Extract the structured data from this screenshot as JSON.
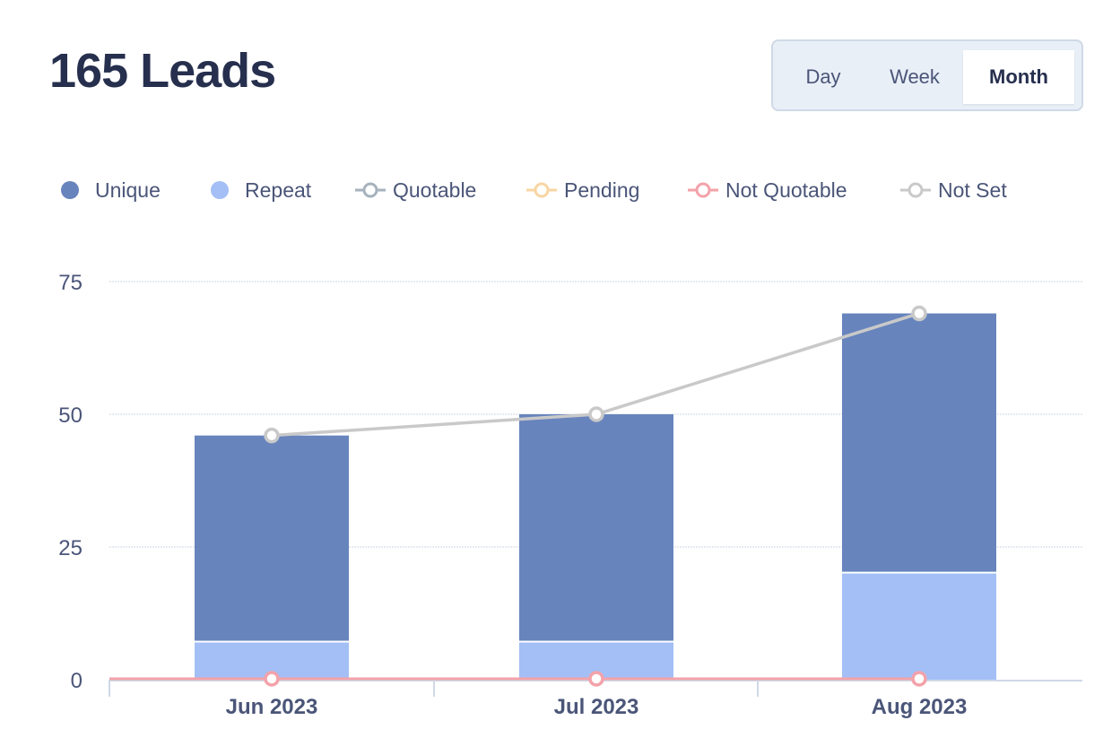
{
  "header": {
    "title": "165 Leads"
  },
  "range_toggle": {
    "options": [
      {
        "label": "Day",
        "active": false
      },
      {
        "label": "Week",
        "active": false
      },
      {
        "label": "Month",
        "active": true
      }
    ]
  },
  "legend": [
    {
      "label": "Unique",
      "type": "bar",
      "color": "#6784bd"
    },
    {
      "label": "Repeat",
      "type": "bar",
      "color": "#a3bff5"
    },
    {
      "label": "Quotable",
      "type": "line",
      "color": "#a6b2bd"
    },
    {
      "label": "Pending",
      "type": "line",
      "color": "#f8d5a3"
    },
    {
      "label": "Not Quotable",
      "type": "line",
      "color": "#f3a2aa"
    },
    {
      "label": "Not Set",
      "type": "line",
      "color": "#c9c9c9"
    }
  ],
  "axis": {
    "y_ticks": [
      "0",
      "25",
      "50",
      "75"
    ],
    "x_ticks": [
      "Jun 2023",
      "Jul 2023",
      "Aug 2023"
    ]
  },
  "chart_data": {
    "type": "bar",
    "title": "165 Leads",
    "categories": [
      "Jun 2023",
      "Jul 2023",
      "Aug 2023"
    ],
    "stacked": true,
    "series": [
      {
        "name": "Unique",
        "type": "bar",
        "color": "#6784bd",
        "values": [
          39,
          43,
          49
        ]
      },
      {
        "name": "Repeat",
        "type": "bar",
        "color": "#a3bff5",
        "values": [
          7,
          7,
          20
        ]
      },
      {
        "name": "Quotable",
        "type": "line",
        "color": "#a6b2bd",
        "values": [
          0,
          0,
          0
        ]
      },
      {
        "name": "Pending",
        "type": "line",
        "color": "#f8d5a3",
        "values": [
          0,
          0,
          0
        ]
      },
      {
        "name": "Not Quotable",
        "type": "line",
        "color": "#f3a2aa",
        "values": [
          0,
          0,
          0
        ]
      },
      {
        "name": "Not Set",
        "type": "line",
        "color": "#c9c9c9",
        "values": [
          46,
          50,
          69
        ]
      }
    ],
    "xlabel": "",
    "ylabel": "",
    "ylim": [
      0,
      75
    ],
    "yticks": [
      0,
      25,
      50,
      75
    ],
    "grid": true,
    "legend_position": "top"
  }
}
